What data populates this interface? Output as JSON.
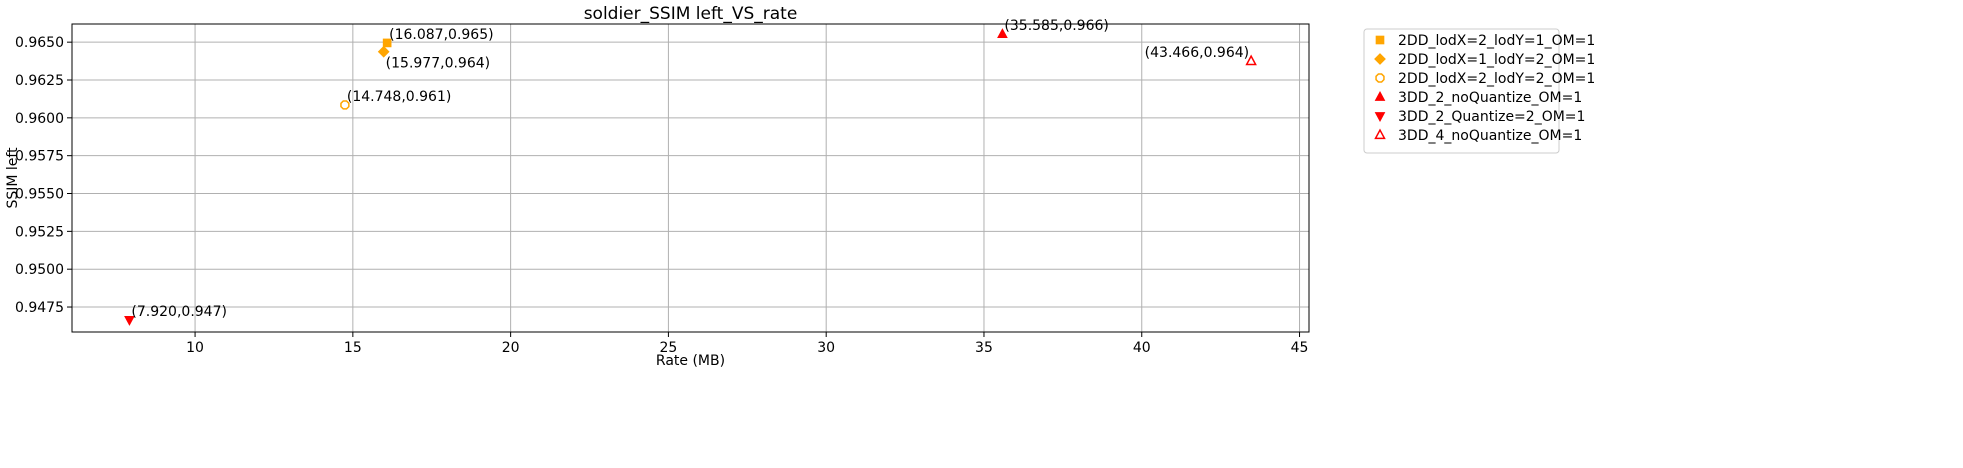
{
  "chart_data": {
    "type": "scatter",
    "title": "soldier_SSIM left_VS_rate",
    "xlabel": "Rate (MB)",
    "ylabel": "SSIM left",
    "xlim": [
      6.1,
      45.3
    ],
    "ylim": [
      0.94585,
      0.9662
    ],
    "xticks": [
      10,
      15,
      20,
      25,
      30,
      35,
      40,
      45
    ],
    "xtick_labels": [
      "10",
      "15",
      "20",
      "25",
      "30",
      "35",
      "40",
      "45"
    ],
    "yticks": [
      0.9475,
      0.95,
      0.9525,
      0.955,
      0.9575,
      0.96,
      0.9625,
      0.965
    ],
    "ytick_labels": [
      "0.9475",
      "0.9500",
      "0.9525",
      "0.9550",
      "0.9575",
      "0.9600",
      "0.9625",
      "0.9650"
    ],
    "grid": true,
    "legend_position": "outside-top-right",
    "series": [
      {
        "name": "2DD_lodX=2_lodY=1_OM=1",
        "marker": "square",
        "color": "#FFA500",
        "filled": true,
        "points": [
          {
            "x": 16.087,
            "y": 0.96495,
            "label": "(16.087,0.965)",
            "label_pos": "above-right"
          }
        ]
      },
      {
        "name": "2DD_lodX=1_lodY=2_OM=1",
        "marker": "diamond",
        "color": "#FFA500",
        "filled": true,
        "points": [
          {
            "x": 15.977,
            "y": 0.96437,
            "label": "(15.977,0.964)",
            "label_pos": "below-right"
          }
        ]
      },
      {
        "name": "2DD_lodX=2_lodY=2_OM=1",
        "marker": "octagon",
        "color": "#FFA500",
        "filled": false,
        "points": [
          {
            "x": 14.748,
            "y": 0.96085,
            "label": "(14.748,0.961)",
            "label_pos": "above-right"
          }
        ]
      },
      {
        "name": "3DD_2_noQuantize_OM=1",
        "marker": "triangle-up",
        "color": "#FF0000",
        "filled": true,
        "points": [
          {
            "x": 35.585,
            "y": 0.96553,
            "label": "(35.585,0.966)",
            "label_pos": "above-right"
          }
        ]
      },
      {
        "name": "3DD_2_Quantize=2_OM=1",
        "marker": "triangle-down",
        "color": "#FF0000",
        "filled": true,
        "points": [
          {
            "x": 7.92,
            "y": 0.94665,
            "label": "(7.920,0.947)",
            "label_pos": "above-right"
          }
        ]
      },
      {
        "name": "3DD_4_noQuantize_OM=1",
        "marker": "triangle-up",
        "color": "#FF0000",
        "filled": false,
        "points": [
          {
            "x": 43.466,
            "y": 0.96375,
            "label": "(43.466,0.964)",
            "label_pos": "above-left"
          }
        ]
      }
    ]
  }
}
